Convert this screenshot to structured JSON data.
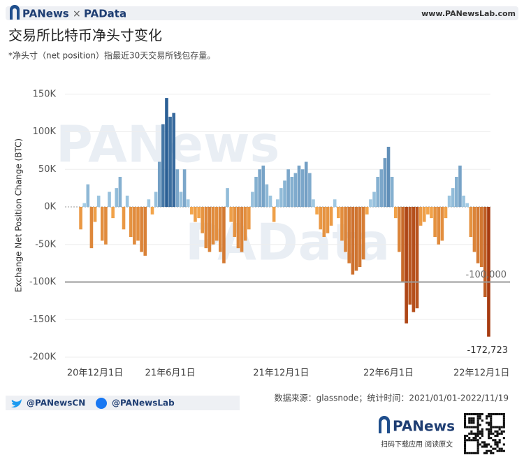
{
  "header": {
    "brand": "PANews",
    "separator": "×",
    "brand2": "PAData",
    "url": "www.PANewsLab.com"
  },
  "chart_data": {
    "type": "bar",
    "title": "交易所比特币净头寸变化",
    "subtitle": "*净头寸（net position）指最近30天交易所钱包存量。",
    "y_label": "Exchange Net Position Change (BTC)",
    "categories": [
      null,
      null,
      null,
      null,
      null,
      null,
      null,
      null,
      null,
      null,
      null,
      null,
      null,
      null,
      null,
      null,
      null,
      null,
      null,
      null,
      null,
      null,
      null,
      null,
      null,
      null,
      null,
      null,
      null,
      null,
      null,
      null,
      null,
      null,
      null,
      null,
      null,
      null,
      null,
      null,
      null,
      null,
      null,
      null,
      null,
      null,
      null,
      null,
      null,
      null,
      null,
      null,
      null,
      null,
      null,
      null,
      null,
      null,
      null,
      null,
      null,
      null,
      null,
      null,
      null,
      null,
      null,
      null,
      null,
      null,
      null,
      null,
      null,
      null,
      null,
      null,
      null,
      null,
      null,
      null,
      null,
      null,
      null,
      null,
      null,
      null,
      null,
      null,
      null,
      null,
      null,
      null,
      null,
      null,
      null,
      null,
      null,
      null,
      null,
      null,
      null,
      null,
      null,
      null,
      null,
      null,
      null,
      null,
      null,
      null,
      null,
      null,
      null,
      null,
      null
    ],
    "values": [
      -30000,
      5000,
      30000,
      -55000,
      -20000,
      15000,
      -45000,
      -50000,
      20000,
      -15000,
      25000,
      40000,
      -30000,
      15000,
      -40000,
      -50000,
      -45000,
      -60000,
      -65000,
      10000,
      -10000,
      20000,
      60000,
      110000,
      145000,
      120000,
      125000,
      50000,
      20000,
      50000,
      10000,
      -10000,
      -20000,
      -15000,
      -35000,
      -55000,
      -60000,
      -50000,
      -45000,
      -60000,
      -75000,
      25000,
      -20000,
      -40000,
      -55000,
      -60000,
      -45000,
      -30000,
      20000,
      40000,
      50000,
      55000,
      30000,
      15000,
      -20000,
      10000,
      25000,
      35000,
      50000,
      40000,
      45000,
      55000,
      50000,
      60000,
      45000,
      10000,
      -10000,
      -30000,
      -40000,
      -35000,
      -25000,
      10000,
      -15000,
      -45000,
      -60000,
      -75000,
      -90000,
      -85000,
      -80000,
      -70000,
      -10000,
      10000,
      20000,
      40000,
      50000,
      65000,
      80000,
      40000,
      -15000,
      -60000,
      -100000,
      -155000,
      -130000,
      -140000,
      -135000,
      -25000,
      -20000,
      -10000,
      -15000,
      -40000,
      -50000,
      -45000,
      -15000,
      15000,
      25000,
      40000,
      55000,
      15000,
      5000,
      -40000,
      -60000,
      -75000,
      -80000,
      -120000,
      -172723
    ],
    "colors": {
      "positive": [
        "#a9d0e8",
        "#2b5f95"
      ],
      "negative": [
        "#f8ac4f",
        "#a5390f"
      ]
    },
    "ylim": [
      -200000,
      160000
    ],
    "yticks": [
      {
        "value": -200000,
        "label": "-200K"
      },
      {
        "value": -150000,
        "label": "-150K"
      },
      {
        "value": -100000,
        "label": "-100K"
      },
      {
        "value": -50000,
        "label": "-50K"
      },
      {
        "value": 0,
        "label": "0K"
      },
      {
        "value": 50000,
        "label": "50K"
      },
      {
        "value": 100000,
        "label": "100K"
      },
      {
        "value": 150000,
        "label": "150K"
      }
    ],
    "xticks": [
      {
        "value": 4,
        "label": "20年12月1日"
      },
      {
        "value": 25,
        "label": "21年6月1日"
      },
      {
        "value": 56,
        "label": "21年12月1日"
      },
      {
        "value": 86,
        "label": "22年6月1日"
      },
      {
        "value": 112,
        "label": "22年12月1日"
      }
    ],
    "reference_line": {
      "value": -100000,
      "label": "-100,000"
    },
    "annotations": [
      {
        "text": "-172,723",
        "value": -172723
      }
    ],
    "grid": true
  },
  "footer": {
    "twitter": "@PANewsCN",
    "facebook": "@PANewsLab",
    "source": "数据来源：glassnode；统计时间：2021/01/01-2022/11/19",
    "logo": "PANews",
    "qr_caption": "扫码下载应用 阅读原文"
  }
}
